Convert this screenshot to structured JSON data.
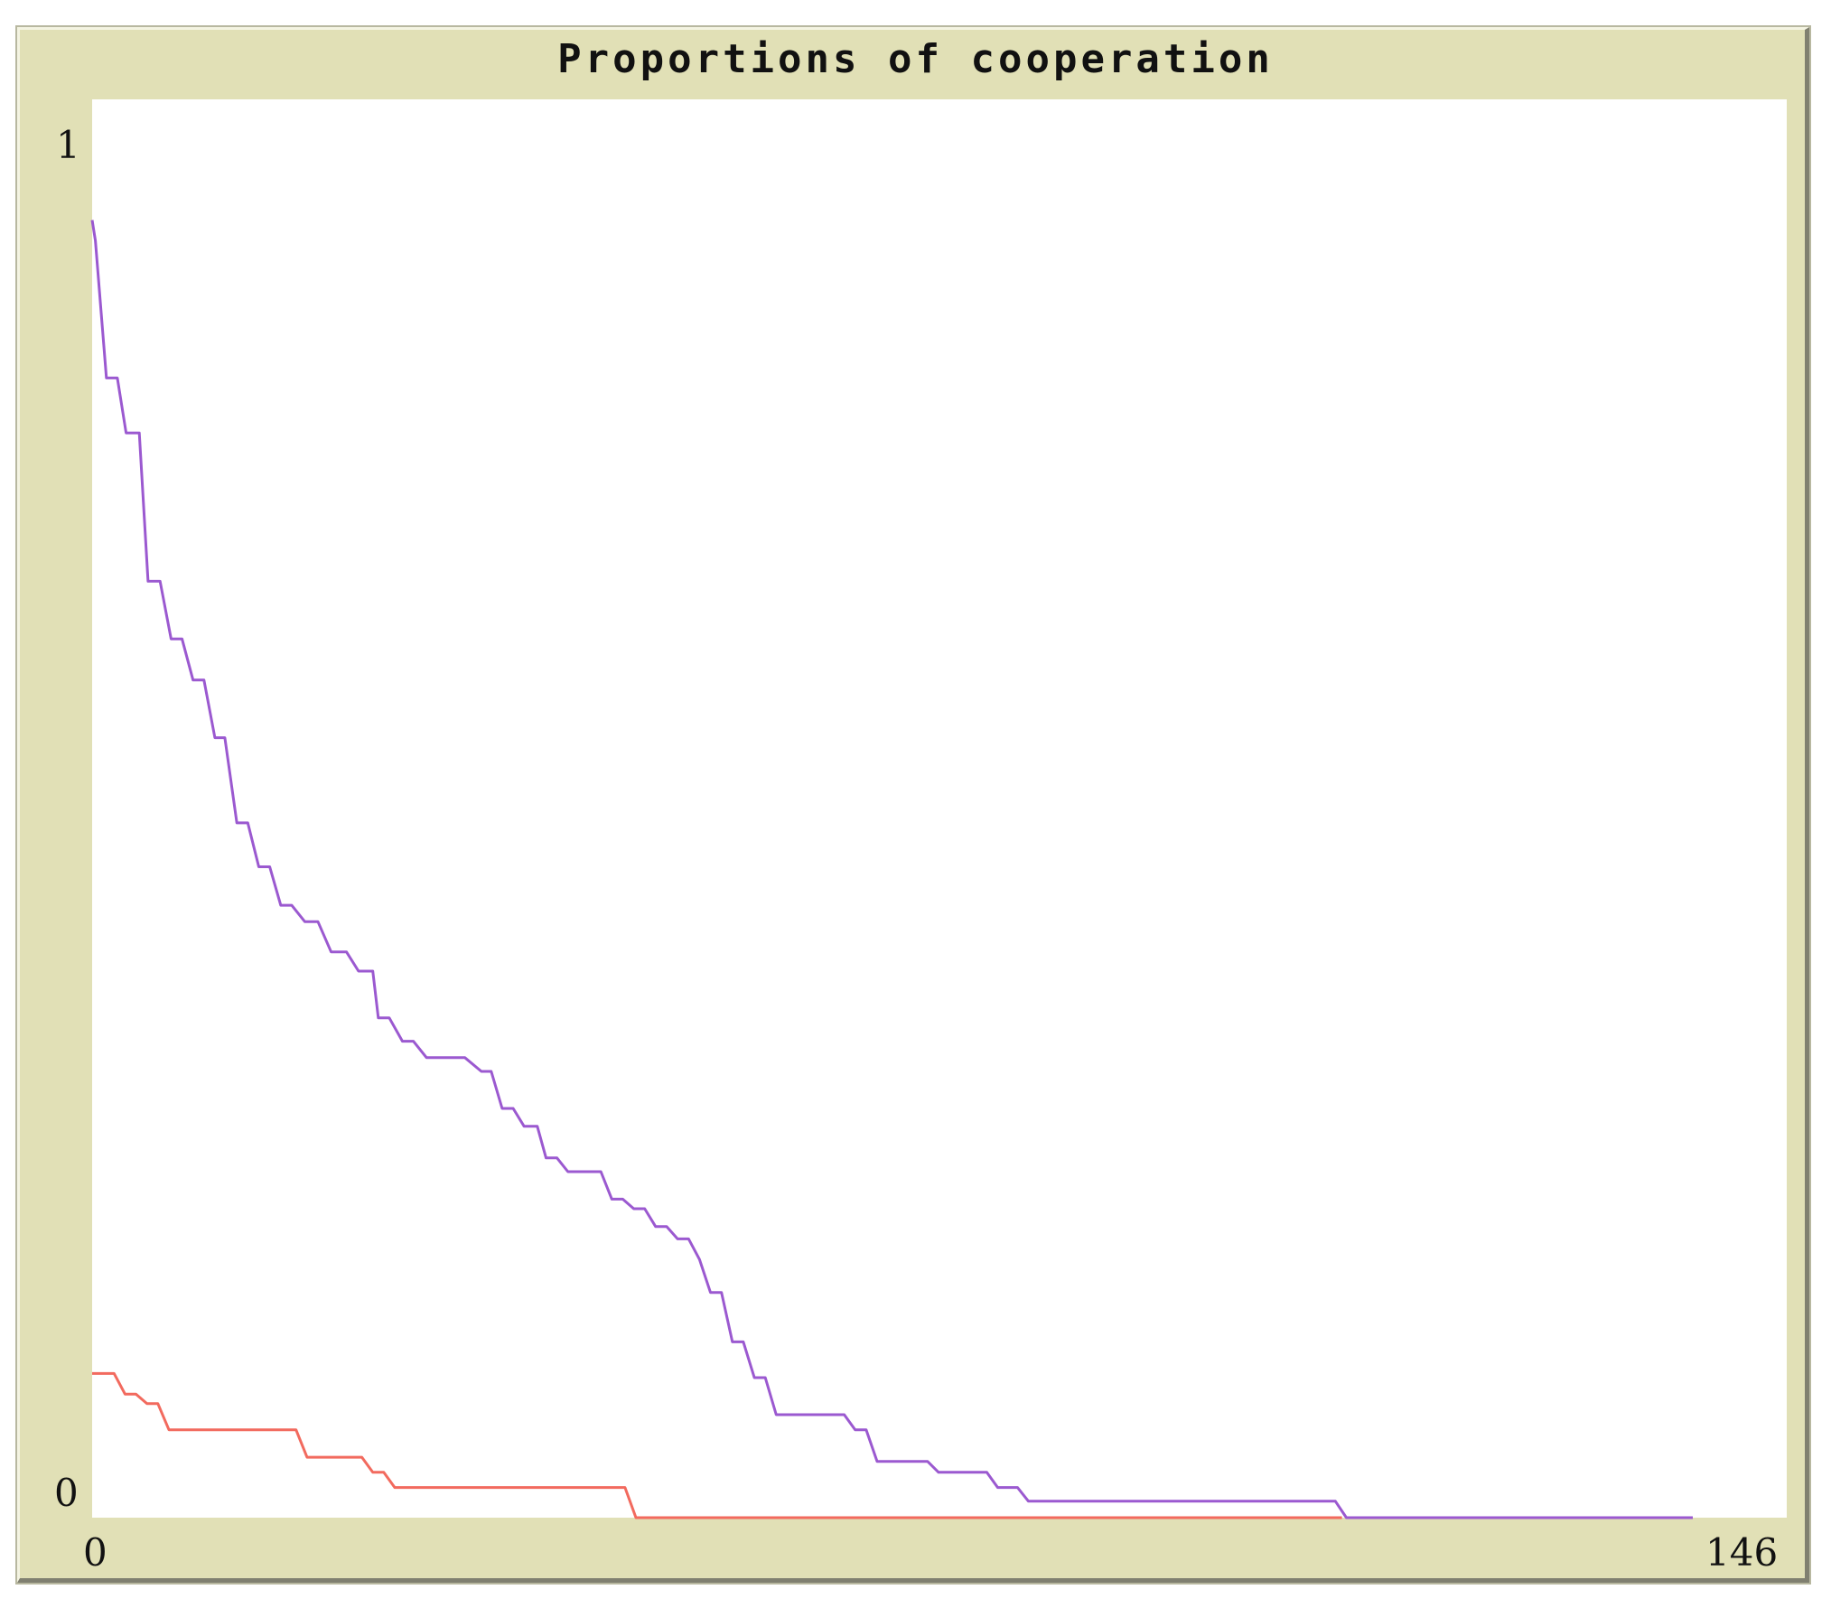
{
  "chart_data": {
    "type": "line",
    "title": "Proportions of cooperation",
    "xlim": [
      0,
      146
    ],
    "ylim": [
      0,
      1
    ],
    "x_tick_labels": [
      "0",
      "146"
    ],
    "y_tick_labels": [
      "0",
      "1"
    ],
    "grid": false,
    "legend": "none",
    "series": [
      {
        "color": "#9b59d0",
        "points": [
          [
            0,
            0.945
          ],
          [
            0.3,
            0.93
          ],
          [
            1.3,
            0.83
          ],
          [
            2.3,
            0.83
          ],
          [
            3.1,
            0.79
          ],
          [
            4.3,
            0.79
          ],
          [
            5.1,
            0.682
          ],
          [
            6.2,
            0.682
          ],
          [
            7.2,
            0.64
          ],
          [
            8.2,
            0.64
          ],
          [
            9.2,
            0.61
          ],
          [
            10.2,
            0.61
          ],
          [
            11.2,
            0.568
          ],
          [
            12.1,
            0.568
          ],
          [
            13.2,
            0.506
          ],
          [
            14.2,
            0.506
          ],
          [
            15.2,
            0.474
          ],
          [
            16.2,
            0.474
          ],
          [
            17.2,
            0.446
          ],
          [
            18.2,
            0.446
          ],
          [
            19.4,
            0.434
          ],
          [
            20.6,
            0.434
          ],
          [
            21.8,
            0.412
          ],
          [
            23.2,
            0.412
          ],
          [
            24.3,
            0.398
          ],
          [
            25.6,
            0.398
          ],
          [
            26.1,
            0.364
          ],
          [
            27.1,
            0.364
          ],
          [
            28.3,
            0.347
          ],
          [
            29.3,
            0.347
          ],
          [
            30.5,
            0.335
          ],
          [
            34.0,
            0.335
          ],
          [
            35.5,
            0.325
          ],
          [
            36.4,
            0.325
          ],
          [
            37.4,
            0.298
          ],
          [
            38.4,
            0.298
          ],
          [
            39.4,
            0.285
          ],
          [
            40.6,
            0.285
          ],
          [
            41.4,
            0.262
          ],
          [
            42.4,
            0.262
          ],
          [
            43.4,
            0.252
          ],
          [
            46.4,
            0.252
          ],
          [
            47.4,
            0.232
          ],
          [
            48.4,
            0.232
          ],
          [
            49.4,
            0.225
          ],
          [
            50.4,
            0.225
          ],
          [
            51.4,
            0.212
          ],
          [
            52.4,
            0.212
          ],
          [
            53.4,
            0.203
          ],
          [
            54.4,
            0.203
          ],
          [
            55.4,
            0.188
          ],
          [
            56.4,
            0.164
          ],
          [
            57.4,
            0.164
          ],
          [
            58.4,
            0.128
          ],
          [
            59.4,
            0.128
          ],
          [
            60.4,
            0.102
          ],
          [
            61.4,
            0.102
          ],
          [
            62.4,
            0.075
          ],
          [
            68.6,
            0.075
          ],
          [
            69.6,
            0.064
          ],
          [
            70.6,
            0.064
          ],
          [
            71.6,
            0.041
          ],
          [
            76.2,
            0.041
          ],
          [
            77.2,
            0.033
          ],
          [
            81.6,
            0.033
          ],
          [
            82.6,
            0.022
          ],
          [
            84.4,
            0.022
          ],
          [
            85.4,
            0.012
          ],
          [
            113.4,
            0.012
          ],
          [
            114.4,
            0.0
          ],
          [
            146,
            0.0
          ]
        ]
      },
      {
        "color": "#f26a5e",
        "points": [
          [
            0,
            0.105
          ],
          [
            2.0,
            0.105
          ],
          [
            3.0,
            0.09
          ],
          [
            4.0,
            0.09
          ],
          [
            5.0,
            0.083
          ],
          [
            6.0,
            0.083
          ],
          [
            7.0,
            0.064
          ],
          [
            18.6,
            0.064
          ],
          [
            19.6,
            0.044
          ],
          [
            24.6,
            0.044
          ],
          [
            25.6,
            0.033
          ],
          [
            26.6,
            0.033
          ],
          [
            27.6,
            0.022
          ],
          [
            48.6,
            0.022
          ],
          [
            49.6,
            0.0
          ],
          [
            114.0,
            0.0
          ]
        ]
      }
    ]
  }
}
